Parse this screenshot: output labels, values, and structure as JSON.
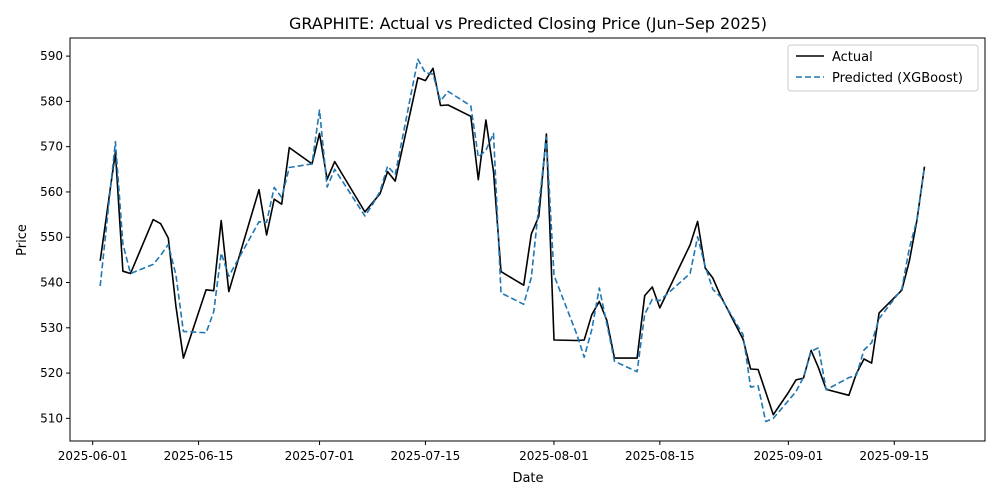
{
  "chart_data": {
    "type": "line",
    "title": "GRAPHITE: Actual vs Predicted Closing Price (Jun–Sep 2025)",
    "xlabel": "Date",
    "ylabel": "Price",
    "xlim": [
      "2025-05-29",
      "2025-09-27"
    ],
    "ylim": [
      505,
      594
    ],
    "x_ticks": [
      "2025-06-01",
      "2025-06-15",
      "2025-07-01",
      "2025-07-15",
      "2025-08-01",
      "2025-08-15",
      "2025-09-01",
      "2025-09-15"
    ],
    "y_ticks": [
      510,
      520,
      530,
      540,
      550,
      560,
      570,
      580,
      590
    ],
    "grid": false,
    "legend": "top-right",
    "series": [
      {
        "name": "Actual",
        "color": "#000000",
        "style": "solid",
        "points": [
          [
            "2025-06-02",
            544.8
          ],
          [
            "2025-06-04",
            568.8
          ],
          [
            "2025-06-05",
            542.5
          ],
          [
            "2025-06-06",
            542.0
          ],
          [
            "2025-06-09",
            553.9
          ],
          [
            "2025-06-10",
            553.0
          ],
          [
            "2025-06-11",
            549.8
          ],
          [
            "2025-06-12",
            534.8
          ],
          [
            "2025-06-13",
            523.3
          ],
          [
            "2025-06-16",
            538.4
          ],
          [
            "2025-06-17",
            538.2
          ],
          [
            "2025-06-18",
            553.7
          ],
          [
            "2025-06-19",
            538.0
          ],
          [
            "2025-06-23",
            560.5
          ],
          [
            "2025-06-24",
            550.5
          ],
          [
            "2025-06-25",
            558.4
          ],
          [
            "2025-06-26",
            557.3
          ],
          [
            "2025-06-27",
            569.8
          ],
          [
            "2025-06-30",
            566.2
          ],
          [
            "2025-07-01",
            572.9
          ],
          [
            "2025-07-02",
            562.8
          ],
          [
            "2025-07-03",
            566.7
          ],
          [
            "2025-07-07",
            555.6
          ],
          [
            "2025-07-08",
            557.6
          ],
          [
            "2025-07-09",
            559.6
          ],
          [
            "2025-07-10",
            564.5
          ],
          [
            "2025-07-11",
            562.4
          ],
          [
            "2025-07-14",
            585.2
          ],
          [
            "2025-07-15",
            584.6
          ],
          [
            "2025-07-16",
            587.3
          ],
          [
            "2025-07-17",
            579.1
          ],
          [
            "2025-07-18",
            579.2
          ],
          [
            "2025-07-21",
            576.7
          ],
          [
            "2025-07-22",
            562.7
          ],
          [
            "2025-07-23",
            575.9
          ],
          [
            "2025-07-24",
            564.5
          ],
          [
            "2025-07-25",
            542.4
          ],
          [
            "2025-07-28",
            539.4
          ],
          [
            "2025-07-29",
            550.7
          ],
          [
            "2025-07-30",
            554.6
          ],
          [
            "2025-07-31",
            572.8
          ],
          [
            "2025-08-01",
            527.3
          ],
          [
            "2025-08-04",
            527.2
          ],
          [
            "2025-08-05",
            527.3
          ],
          [
            "2025-08-06",
            532.9
          ],
          [
            "2025-08-07",
            535.8
          ],
          [
            "2025-08-08",
            531.6
          ],
          [
            "2025-08-09",
            523.3
          ],
          [
            "2025-08-12",
            523.3
          ],
          [
            "2025-08-13",
            537.1
          ],
          [
            "2025-08-14",
            539.0
          ],
          [
            "2025-08-15",
            534.4
          ],
          [
            "2025-08-19",
            548.3
          ],
          [
            "2025-08-20",
            553.5
          ],
          [
            "2025-08-21",
            543.2
          ],
          [
            "2025-08-22",
            541.0
          ],
          [
            "2025-08-23",
            537.2
          ],
          [
            "2025-08-26",
            527.5
          ],
          [
            "2025-08-27",
            520.9
          ],
          [
            "2025-08-28",
            520.8
          ],
          [
            "2025-08-30",
            510.8
          ],
          [
            "2025-09-01",
            515.7
          ],
          [
            "2025-09-02",
            518.5
          ],
          [
            "2025-09-03",
            518.9
          ],
          [
            "2025-09-04",
            525.0
          ],
          [
            "2025-09-05",
            521.1
          ],
          [
            "2025-09-06",
            516.4
          ],
          [
            "2025-09-09",
            515.1
          ],
          [
            "2025-09-10",
            519.9
          ],
          [
            "2025-09-11",
            523.1
          ],
          [
            "2025-09-12",
            522.2
          ],
          [
            "2025-09-13",
            533.3
          ],
          [
            "2025-09-16",
            538.3
          ],
          [
            "2025-09-17",
            544.8
          ],
          [
            "2025-09-18",
            553.7
          ],
          [
            "2025-09-19",
            565.6
          ]
        ]
      },
      {
        "name": "Predicted (XGBoost)",
        "color": "#1f77b4",
        "style": "dashed",
        "points": [
          [
            "2025-06-02",
            539.2
          ],
          [
            "2025-06-04",
            571.1
          ],
          [
            "2025-06-05",
            548.5
          ],
          [
            "2025-06-06",
            542.0
          ],
          [
            "2025-06-09",
            544.0
          ],
          [
            "2025-06-10",
            546.0
          ],
          [
            "2025-06-11",
            548.4
          ],
          [
            "2025-06-12",
            541.7
          ],
          [
            "2025-06-13",
            529.2
          ],
          [
            "2025-06-16",
            528.9
          ],
          [
            "2025-06-17",
            533.5
          ],
          [
            "2025-06-18",
            546.5
          ],
          [
            "2025-06-19",
            541.4
          ],
          [
            "2025-06-23",
            553.4
          ],
          [
            "2025-06-24",
            553.3
          ],
          [
            "2025-06-25",
            561.0
          ],
          [
            "2025-06-26",
            558.8
          ],
          [
            "2025-06-27",
            565.4
          ],
          [
            "2025-06-30",
            566.2
          ],
          [
            "2025-07-01",
            578.1
          ],
          [
            "2025-07-02",
            561.1
          ],
          [
            "2025-07-03",
            565.0
          ],
          [
            "2025-07-07",
            554.7
          ],
          [
            "2025-07-08",
            557.2
          ],
          [
            "2025-07-09",
            560.1
          ],
          [
            "2025-07-10",
            565.7
          ],
          [
            "2025-07-11",
            563.8
          ],
          [
            "2025-07-14",
            589.3
          ],
          [
            "2025-07-15",
            586.3
          ],
          [
            "2025-07-16",
            586.0
          ],
          [
            "2025-07-17",
            580.1
          ],
          [
            "2025-07-18",
            582.2
          ],
          [
            "2025-07-21",
            579.0
          ],
          [
            "2025-07-22",
            567.7
          ],
          [
            "2025-07-23",
            569.2
          ],
          [
            "2025-07-24",
            572.9
          ],
          [
            "2025-07-25",
            537.7
          ],
          [
            "2025-07-28",
            535.2
          ],
          [
            "2025-07-29",
            541.1
          ],
          [
            "2025-07-30",
            556.9
          ],
          [
            "2025-07-31",
            572.1
          ],
          [
            "2025-08-01",
            541.6
          ],
          [
            "2025-08-04",
            528.6
          ],
          [
            "2025-08-05",
            523.5
          ],
          [
            "2025-08-06",
            529.6
          ],
          [
            "2025-08-07",
            538.8
          ],
          [
            "2025-08-08",
            530.8
          ],
          [
            "2025-08-09",
            522.6
          ],
          [
            "2025-08-12",
            520.3
          ],
          [
            "2025-08-13",
            533.0
          ],
          [
            "2025-08-14",
            536.3
          ],
          [
            "2025-08-15",
            536.0
          ],
          [
            "2025-08-19",
            542.0
          ],
          [
            "2025-08-20",
            550.1
          ],
          [
            "2025-08-21",
            543.6
          ],
          [
            "2025-08-22",
            538.5
          ],
          [
            "2025-08-23",
            536.9
          ],
          [
            "2025-08-26",
            528.5
          ],
          [
            "2025-08-27",
            516.9
          ],
          [
            "2025-08-28",
            517.2
          ],
          [
            "2025-08-29",
            509.3
          ],
          [
            "2025-08-30",
            510.0
          ],
          [
            "2025-09-02",
            515.9
          ],
          [
            "2025-09-03",
            519.1
          ],
          [
            "2025-09-04",
            524.8
          ],
          [
            "2025-09-05",
            525.6
          ],
          [
            "2025-09-06",
            516.3
          ],
          [
            "2025-09-09",
            519.0
          ],
          [
            "2025-09-10",
            519.5
          ],
          [
            "2025-09-11",
            525.1
          ],
          [
            "2025-09-12",
            526.7
          ],
          [
            "2025-09-13",
            532.0
          ],
          [
            "2025-09-16",
            538.6
          ],
          [
            "2025-09-17",
            547.6
          ],
          [
            "2025-09-18",
            553.8
          ],
          [
            "2025-09-19",
            565.6
          ]
        ]
      }
    ]
  }
}
